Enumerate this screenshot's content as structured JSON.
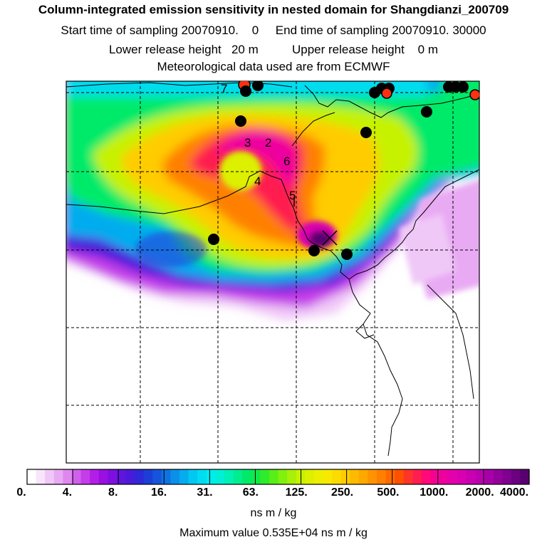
{
  "header": {
    "title": "Column-integrated emission sensitivity in nested domain for Shangdianzi_200709",
    "sampling": "Start time of sampling 20070910.    0     End time of sampling 20070910. 30000",
    "release": "Lower release height   20 m          Upper release height    0 m",
    "met": "Meteorological data used are from ECMWF"
  },
  "map": {
    "point_labels": [
      "7",
      "3",
      "2",
      "6",
      "4",
      "5"
    ],
    "receptor_marker": "x-marker",
    "colors": {
      "water": "#e9a2f3",
      "receptor_dot": "#000000",
      "red_dot": "#ff3010"
    }
  },
  "colorbar": {
    "ticks": [
      "0.",
      "4.",
      "8.",
      "16.",
      "31.",
      "63.",
      "125.",
      "250.",
      "500.",
      "1000.",
      "2000.",
      "4000."
    ],
    "units": "ns m / kg",
    "colors": [
      "#ffffff",
      "#f8e4fb",
      "#f0c8f7",
      "#e8aaf3",
      "#de88ef",
      "#d060ec",
      "#c43de9",
      "#b41ee6",
      "#9a10e2",
      "#7d10e0",
      "#6015dc",
      "#4a1ada",
      "#2f28d8",
      "#1c3ed6",
      "#1555dc",
      "#0f72e2",
      "#0a90e8",
      "#06acee",
      "#00c8f2",
      "#00dcf0",
      "#00ecec",
      "#00f0d6",
      "#00f0b6",
      "#00ee90",
      "#00ea6a",
      "#10e84a",
      "#30ea2c",
      "#58ee18",
      "#80f00e",
      "#a6f00a",
      "#c6f200",
      "#dcf000",
      "#ecf000",
      "#f6ea00",
      "#fcdc00",
      "#ffcc00",
      "#ffba00",
      "#ffa800",
      "#ff9400",
      "#ff8000",
      "#ff6a00",
      "#ff5000",
      "#ff3428",
      "#ff1e50",
      "#ff0a78",
      "#f60094",
      "#ee00a0",
      "#e400aa",
      "#d800b0",
      "#ca00b2",
      "#ba00b0",
      "#a800a8",
      "#94009c",
      "#800090",
      "#6c0080",
      "#580070"
    ]
  },
  "max_value": "Maximum value  0.535E+04 ns m / kg"
}
